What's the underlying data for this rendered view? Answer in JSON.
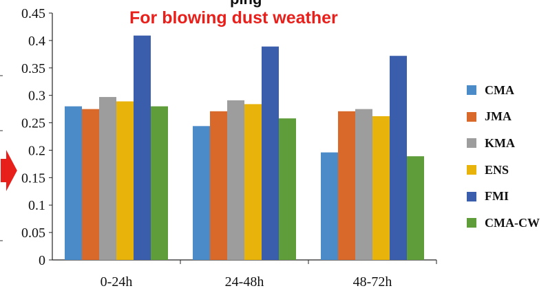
{
  "header": {
    "top_text": "ping",
    "subtitle": "For blowing dust weather"
  },
  "colors": {
    "CMA": "#4a8bc8",
    "JMA": "#d9692b",
    "KMA": "#9d9d9d",
    "ENS": "#e8b30a",
    "FMI": "#3a5eab",
    "CMA-CW": "#5f9d3b",
    "arrow": "#e8201c"
  },
  "chart_data": {
    "type": "bar",
    "title": "",
    "categories": [
      "0-24h",
      "24-48h",
      "48-72h"
    ],
    "series": [
      {
        "name": "CMA",
        "values": [
          0.28,
          0.244,
          0.196
        ]
      },
      {
        "name": "JMA",
        "values": [
          0.275,
          0.271,
          0.271
        ]
      },
      {
        "name": "KMA",
        "values": [
          0.297,
          0.291,
          0.275
        ]
      },
      {
        "name": "ENS",
        "values": [
          0.289,
          0.284,
          0.262
        ]
      },
      {
        "name": "FMI",
        "values": [
          0.409,
          0.389,
          0.372
        ]
      },
      {
        "name": "CMA-CW",
        "values": [
          0.28,
          0.258,
          0.189
        ]
      }
    ],
    "ylim": [
      0,
      0.45
    ],
    "yticks": [
      "0",
      "0.05",
      "0.1",
      "0.15",
      "0.2",
      "0.25",
      "0.3",
      "0.35",
      "0.4",
      "0.45"
    ],
    "xlabel": "",
    "ylabel": "",
    "grid": false,
    "legend": "right"
  }
}
